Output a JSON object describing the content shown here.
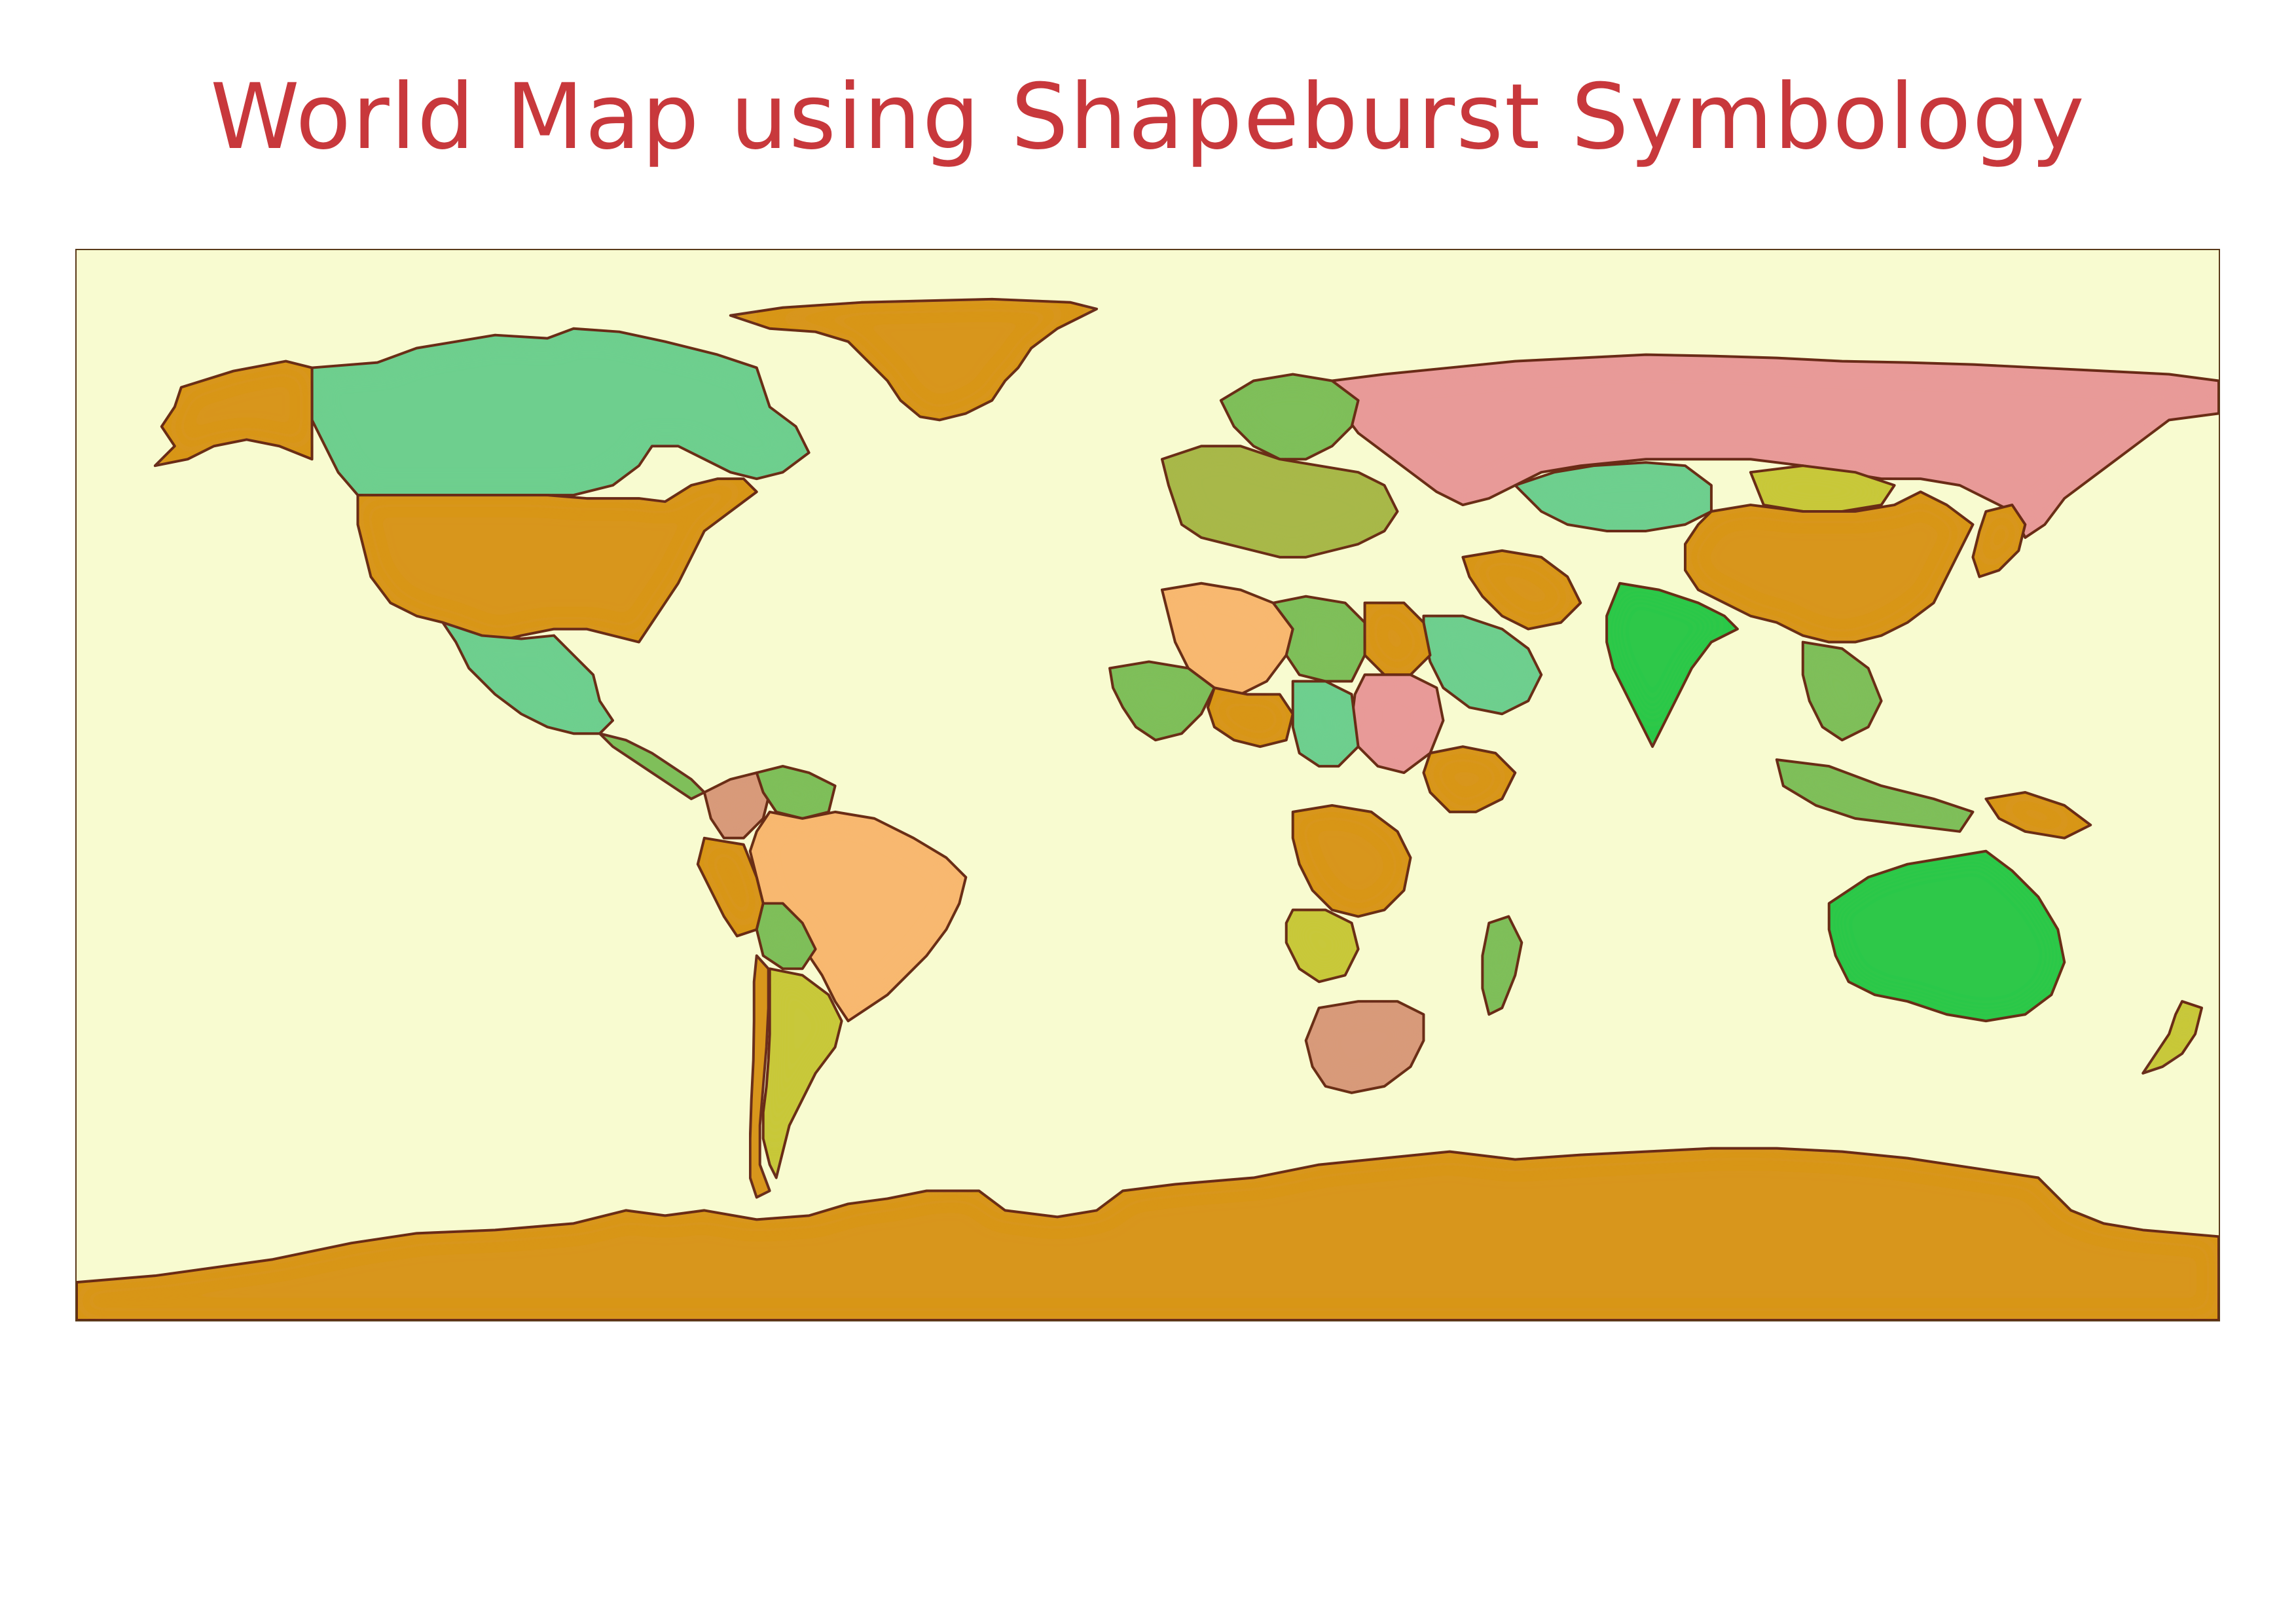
{
  "title": "World Map using Shapeburst Symbology",
  "colors": {
    "title": "#c8383c",
    "ocean": "#f8fbd0",
    "outline": "#6b2f1a",
    "ocher": "#d8961a",
    "teal_green": "#6ecf8e",
    "pink": "#e89a98",
    "green": "#7fbf5a",
    "bright_green": "#2ec84a",
    "yellow_green": "#c8c83a",
    "peach": "#f8b870",
    "salmon": "#d89a7a",
    "olive": "#a8b84a"
  },
  "map": {
    "projection": "equirectangular",
    "symbology": "shapeburst",
    "regions": [
      {
        "name": "Antarctica",
        "fill": "ocher"
      },
      {
        "name": "Greenland",
        "fill": "ocher"
      },
      {
        "name": "Canada",
        "fill": "teal_green"
      },
      {
        "name": "Alaska",
        "fill": "ocher"
      },
      {
        "name": "United States",
        "fill": "ocher"
      },
      {
        "name": "Mexico",
        "fill": "teal_green"
      },
      {
        "name": "Central America",
        "fill": "green"
      },
      {
        "name": "Colombia",
        "fill": "salmon"
      },
      {
        "name": "Venezuela",
        "fill": "green"
      },
      {
        "name": "Brazil",
        "fill": "peach"
      },
      {
        "name": "Peru",
        "fill": "ocher"
      },
      {
        "name": "Bolivia",
        "fill": "green"
      },
      {
        "name": "Argentina",
        "fill": "yellow_green"
      },
      {
        "name": "Chile",
        "fill": "ocher"
      },
      {
        "name": "Russia",
        "fill": "pink"
      },
      {
        "name": "Kazakhstan",
        "fill": "teal_green"
      },
      {
        "name": "Mongolia",
        "fill": "yellow_green"
      },
      {
        "name": "China",
        "fill": "ocher"
      },
      {
        "name": "India",
        "fill": "bright_green"
      },
      {
        "name": "Iran",
        "fill": "ocher"
      },
      {
        "name": "Saudi Arabia",
        "fill": "teal_green"
      },
      {
        "name": "Scandinavia",
        "fill": "green"
      },
      {
        "name": "Europe",
        "fill": "olive"
      },
      {
        "name": "Algeria",
        "fill": "peach"
      },
      {
        "name": "Libya",
        "fill": "green"
      },
      {
        "name": "Egypt",
        "fill": "ocher"
      },
      {
        "name": "Sudan",
        "fill": "pink"
      },
      {
        "name": "Mali",
        "fill": "green"
      },
      {
        "name": "Niger",
        "fill": "ocher"
      },
      {
        "name": "Chad",
        "fill": "teal_green"
      },
      {
        "name": "Ethiopia",
        "fill": "ocher"
      },
      {
        "name": "DR Congo",
        "fill": "ocher"
      },
      {
        "name": "Angola",
        "fill": "yellow_green"
      },
      {
        "name": "South Africa",
        "fill": "salmon"
      },
      {
        "name": "Madagascar",
        "fill": "green"
      },
      {
        "name": "Southeast Asia",
        "fill": "green"
      },
      {
        "name": "Indonesia",
        "fill": "green"
      },
      {
        "name": "Papua New Guinea",
        "fill": "ocher"
      },
      {
        "name": "Australia",
        "fill": "bright_green"
      },
      {
        "name": "New Zealand",
        "fill": "yellow_green"
      },
      {
        "name": "Japan",
        "fill": "ocher"
      }
    ]
  }
}
